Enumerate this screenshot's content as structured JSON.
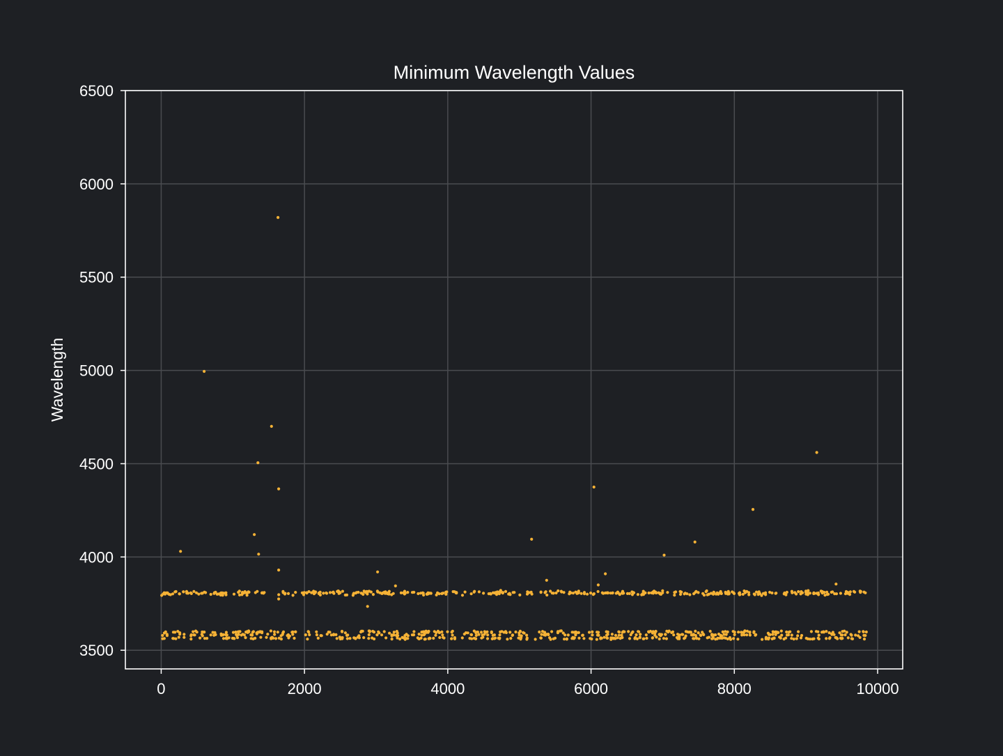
{
  "colors": {
    "background": "#1e2024",
    "grid": "#4a4c50",
    "frame": "#ffffff",
    "marker": "#f5b236",
    "text": "#ffffff"
  },
  "chart_data": {
    "type": "scatter",
    "title": "Minimum Wavelength Values",
    "xlabel": "",
    "ylabel": "Wavelength",
    "xlim": [
      -500,
      10350
    ],
    "ylim": [
      3400,
      6500
    ],
    "xticks": [
      0,
      2000,
      4000,
      6000,
      8000,
      10000
    ],
    "yticks": [
      3500,
      4000,
      4500,
      5000,
      5500,
      6000,
      6500
    ],
    "grid": true,
    "legend": false,
    "outliers": [
      {
        "x": 270,
        "y": 4030
      },
      {
        "x": 600,
        "y": 4995
      },
      {
        "x": 1300,
        "y": 4120
      },
      {
        "x": 1350,
        "y": 4505
      },
      {
        "x": 1360,
        "y": 4015
      },
      {
        "x": 1540,
        "y": 4700
      },
      {
        "x": 1630,
        "y": 5820
      },
      {
        "x": 1640,
        "y": 4365
      },
      {
        "x": 1640,
        "y": 3930
      },
      {
        "x": 1640,
        "y": 3775
      },
      {
        "x": 2880,
        "y": 3735
      },
      {
        "x": 3020,
        "y": 3920
      },
      {
        "x": 3270,
        "y": 3845
      },
      {
        "x": 5170,
        "y": 4095
      },
      {
        "x": 5380,
        "y": 3875
      },
      {
        "x": 6040,
        "y": 4375
      },
      {
        "x": 6100,
        "y": 3850
      },
      {
        "x": 6200,
        "y": 3910
      },
      {
        "x": 7020,
        "y": 4010
      },
      {
        "x": 7450,
        "y": 4080
      },
      {
        "x": 8260,
        "y": 4255
      },
      {
        "x": 9150,
        "y": 4560
      },
      {
        "x": 9420,
        "y": 3855
      }
    ],
    "clusters": [
      {
        "x_start": 0,
        "x_end": 9850,
        "y_center": 3807,
        "y_spread": 14,
        "point_count": 420
      },
      {
        "x_start": 0,
        "x_end": 9850,
        "y_center": 3598,
        "y_spread": 7,
        "point_count": 210
      },
      {
        "x_start": 0,
        "x_end": 9850,
        "y_center": 3582,
        "y_spread": 6,
        "point_count": 180
      },
      {
        "x_start": 0,
        "x_end": 9850,
        "y_center": 3564,
        "y_spread": 7,
        "point_count": 230
      }
    ]
  }
}
